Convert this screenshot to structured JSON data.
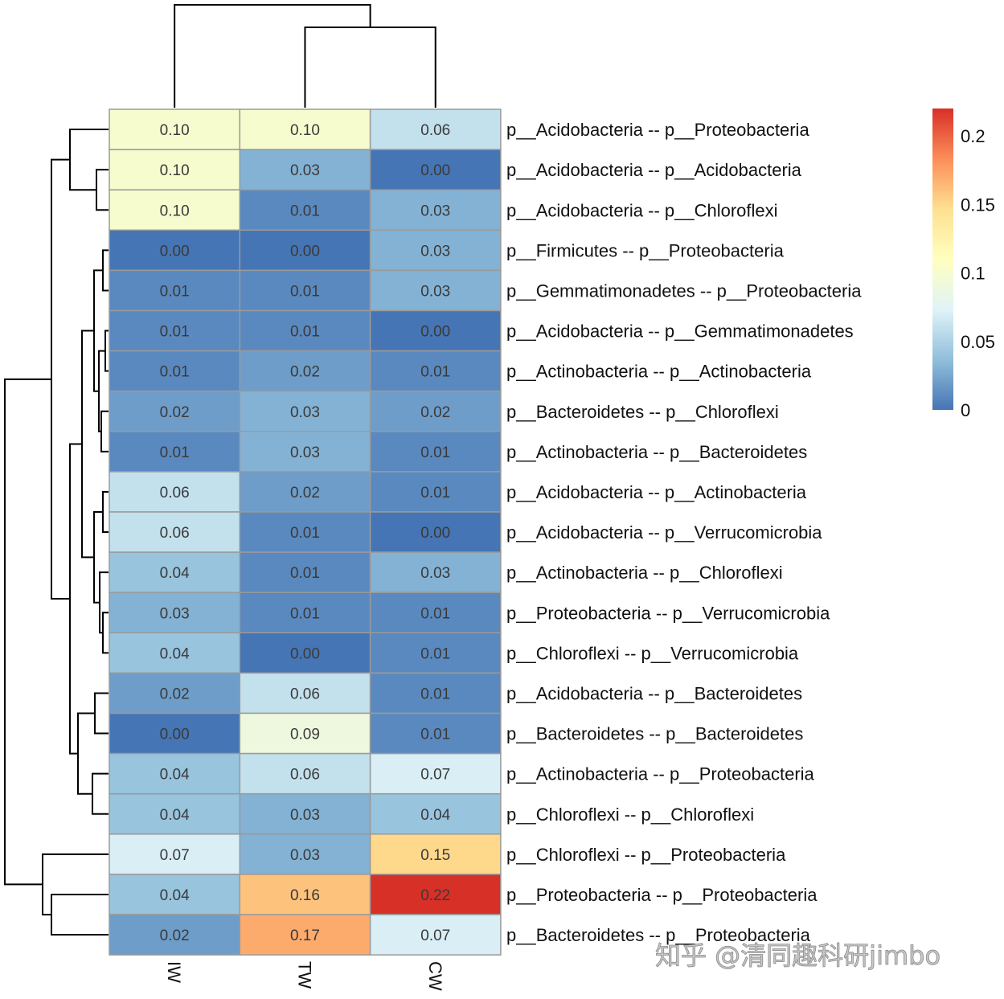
{
  "chart_data": {
    "type": "heatmap",
    "columns": [
      "IW",
      "TW",
      "CW"
    ],
    "rows": [
      "p__Acidobacteria -- p__Proteobacteria",
      "p__Acidobacteria -- p__Acidobacteria",
      "p__Acidobacteria -- p__Chloroflexi",
      "p__Firmicutes -- p__Proteobacteria",
      "p__Gemmatimonadetes -- p__Proteobacteria",
      "p__Acidobacteria -- p__Gemmatimonadetes",
      "p__Actinobacteria -- p__Actinobacteria",
      "p__Bacteroidetes -- p__Chloroflexi",
      "p__Actinobacteria -- p__Bacteroidetes",
      "p__Acidobacteria -- p__Actinobacteria",
      "p__Acidobacteria -- p__Verrucomicrobia",
      "p__Actinobacteria -- p__Chloroflexi",
      "p__Proteobacteria -- p__Verrucomicrobia",
      "p__Chloroflexi -- p__Verrucomicrobia",
      "p__Acidobacteria -- p__Bacteroidetes",
      "p__Bacteroidetes -- p__Bacteroidetes",
      "p__Actinobacteria -- p__Proteobacteria",
      "p__Chloroflexi -- p__Chloroflexi",
      "p__Chloroflexi -- p__Proteobacteria",
      "p__Proteobacteria -- p__Proteobacteria",
      "p__Bacteroidetes -- p__Proteobacteria"
    ],
    "values": [
      [
        0.1,
        0.1,
        0.06
      ],
      [
        0.1,
        0.03,
        0.0
      ],
      [
        0.1,
        0.01,
        0.03
      ],
      [
        0.0,
        0.0,
        0.03
      ],
      [
        0.01,
        0.01,
        0.03
      ],
      [
        0.01,
        0.01,
        0.0
      ],
      [
        0.01,
        0.02,
        0.01
      ],
      [
        0.02,
        0.03,
        0.02
      ],
      [
        0.01,
        0.03,
        0.01
      ],
      [
        0.06,
        0.02,
        0.01
      ],
      [
        0.06,
        0.01,
        0.0
      ],
      [
        0.04,
        0.01,
        0.03
      ],
      [
        0.03,
        0.01,
        0.01
      ],
      [
        0.04,
        0.0,
        0.01
      ],
      [
        0.02,
        0.06,
        0.01
      ],
      [
        0.0,
        0.09,
        0.01
      ],
      [
        0.04,
        0.06,
        0.07
      ],
      [
        0.04,
        0.03,
        0.04
      ],
      [
        0.07,
        0.03,
        0.15
      ],
      [
        0.04,
        0.16,
        0.22
      ],
      [
        0.02,
        0.17,
        0.07
      ]
    ],
    "row_dendrogram": true,
    "column_dendrogram": true,
    "colorbar": {
      "range": [
        0,
        0.22
      ],
      "ticks": [
        "0",
        "0.05",
        "0.1",
        "0.15",
        "0.2"
      ],
      "tick_values": [
        0,
        0.05,
        0.1,
        0.15,
        0.2
      ],
      "colors": [
        "#4575b4",
        "#91bfdb",
        "#e0f3f8",
        "#ffffbf",
        "#fee090",
        "#fc8d59",
        "#d73027"
      ],
      "placement": "right"
    }
  },
  "watermark": "知乎 @清同趣科研jimbo"
}
